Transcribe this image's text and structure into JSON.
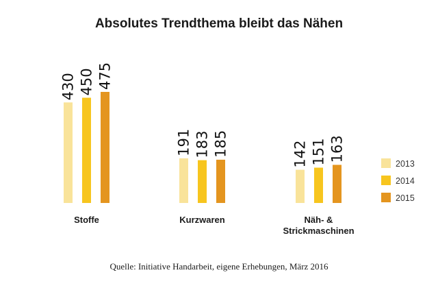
{
  "chart_data": {
    "type": "bar",
    "title": "Absolutes Trendthema bleibt das Nähen",
    "categories": [
      [
        "Stoffe"
      ],
      [
        "Kurzwaren"
      ],
      [
        "Näh- &",
        "Strickmaschinen"
      ]
    ],
    "series": [
      {
        "name": "2013",
        "color": "#f9e39a",
        "values": [
          430,
          191,
          142
        ]
      },
      {
        "name": "2014",
        "color": "#f7c51e",
        "values": [
          450,
          183,
          151
        ]
      },
      {
        "name": "2015",
        "color": "#e4951f",
        "values": [
          475,
          185,
          163
        ]
      }
    ],
    "ylim": [
      0,
      475
    ],
    "legend_position": "right",
    "grid": false,
    "source": "Quelle: Initiative Handarbeit, eigene Erhebungen, März 2016"
  }
}
